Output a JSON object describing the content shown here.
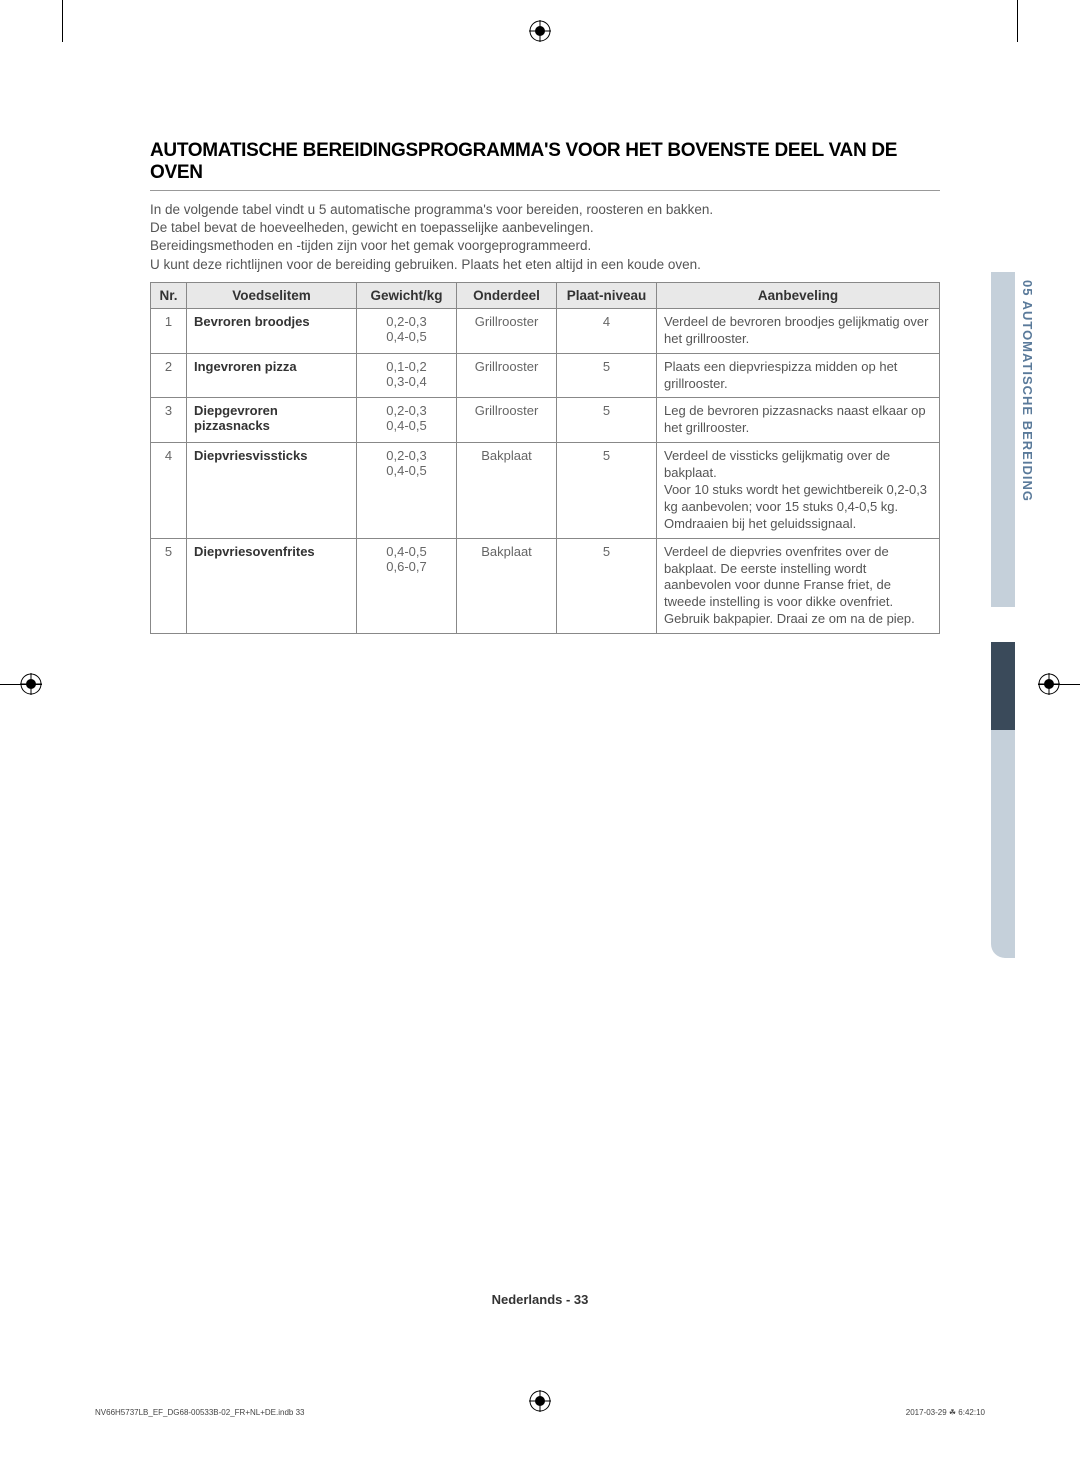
{
  "heading": "AUTOMATISCHE BEREIDINGSPROGRAMMA'S VOOR HET BOVENSTE DEEL VAN DE OVEN",
  "intro": {
    "line1": "In de volgende tabel vindt u 5 automatische programma's voor bereiden, roosteren en bakken.",
    "line2": "De tabel bevat de hoeveelheden, gewicht en toepasselijke aanbevelingen.",
    "line3": "Bereidingsmethoden en -tijden zijn voor het gemak voorgeprogrammeerd.",
    "line4": "U kunt deze richtlijnen voor de bereiding gebruiken. Plaats het eten altijd in een koude oven."
  },
  "columns": {
    "nr": "Nr.",
    "item": "Voedselitem",
    "weight": "Gewicht/kg",
    "part": "Onderdeel",
    "level": "Plaat-niveau",
    "rec": "Aanbeveling"
  },
  "rows": [
    {
      "nr": "1",
      "item": "Bevroren broodjes",
      "weight": "0,2-0,3\n0,4-0,5",
      "part": "Grillrooster",
      "level": "4",
      "rec": "Verdeel de bevroren broodjes gelijkmatig over het grillrooster."
    },
    {
      "nr": "2",
      "item": "Ingevroren pizza",
      "weight": "0,1-0,2\n0,3-0,4",
      "part": "Grillrooster",
      "level": "5",
      "rec": "Plaats een diepvriespizza midden op het grillrooster."
    },
    {
      "nr": "3",
      "item": "Diepgevroren pizzasnacks",
      "weight": "0,2-0,3\n0,4-0,5",
      "part": "Grillrooster",
      "level": "5",
      "rec": "Leg de bevroren pizzasnacks naast elkaar op het grillrooster."
    },
    {
      "nr": "4",
      "item": "Diepvriesvissticks",
      "weight": "0,2-0,3\n0,4-0,5",
      "part": "Bakplaat",
      "level": "5",
      "rec": "Verdeel de vissticks gelijkmatig over de bakplaat.\nVoor 10 stuks wordt het gewichtbereik 0,2-0,3 kg aanbevolen; voor 15 stuks 0,4-0,5 kg. Omdraaien bij het geluidssignaal."
    },
    {
      "nr": "5",
      "item": "Diepvriesovenfrites",
      "weight": "0,4-0,5\n0,6-0,7",
      "part": "Bakplaat",
      "level": "5",
      "rec": "Verdeel de diepvries ovenfrites over de bakplaat. De eerste instelling wordt aanbevolen voor dunne Franse friet, de tweede instelling is voor dikke ovenfriet. Gebruik bakpapier. Draai ze om na de piep."
    }
  ],
  "sideTab": "05  AUTOMATISCHE BEREIDING",
  "footerCenter": "Nederlands - 33",
  "footerLeft": "NV66H5737LB_EF_DG68-00533B-02_FR+NL+DE.indb   33",
  "footerRight": "2017-03-29   ☘ 6:42:10"
}
